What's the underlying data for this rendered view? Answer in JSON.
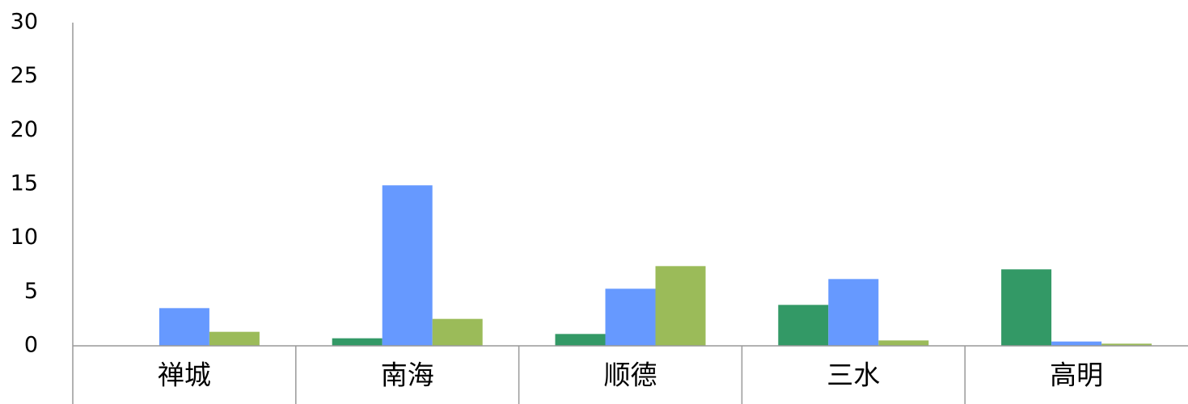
{
  "chart_data": {
    "type": "bar",
    "categories": [
      "禅城",
      "南海",
      "顺德",
      "三水",
      "高明"
    ],
    "series": [
      {
        "color": "#339966",
        "values": [
          0,
          0.7,
          1.1,
          3.8,
          7.1
        ]
      },
      {
        "color": "#6699ff",
        "values": [
          3.5,
          14.9,
          5.3,
          6.2,
          0.4
        ]
      },
      {
        "color": "#9bbb59",
        "values": [
          1.3,
          2.5,
          7.4,
          0.5,
          0.2
        ]
      }
    ],
    "ylim": [
      0,
      30
    ],
    "yticks": [
      0,
      5,
      10,
      15,
      20,
      25,
      30
    ],
    "grid": false
  }
}
